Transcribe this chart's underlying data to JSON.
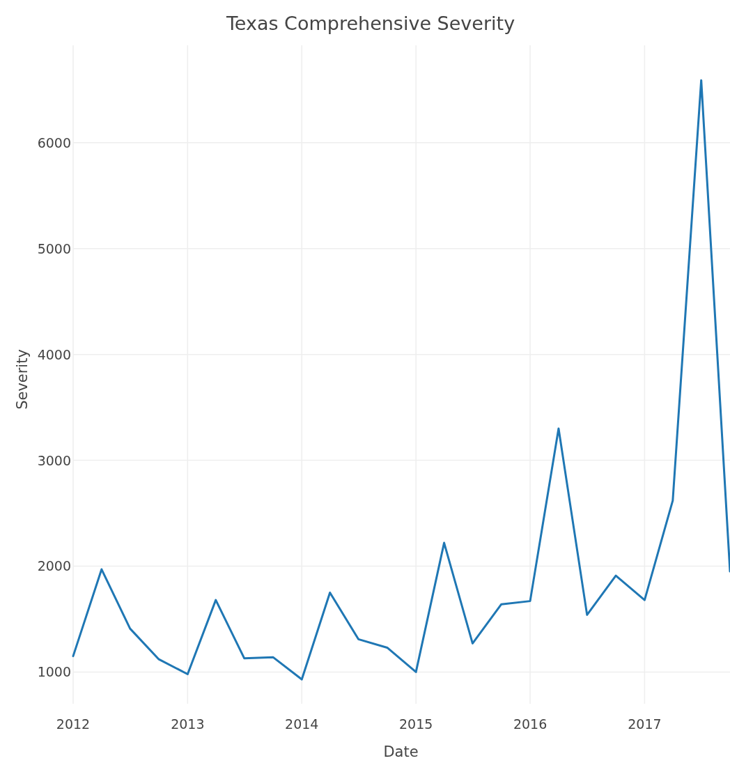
{
  "chart_data": {
    "type": "line",
    "title": "Texas Comprehensive Severity",
    "xlabel": "Date",
    "ylabel": "Severity",
    "x": [
      "2012-01",
      "2012-04",
      "2012-07",
      "2012-10",
      "2013-01",
      "2013-04",
      "2013-07",
      "2013-10",
      "2014-01",
      "2014-04",
      "2014-07",
      "2014-10",
      "2015-01",
      "2015-04",
      "2015-07",
      "2015-10",
      "2016-01",
      "2016-04",
      "2016-07",
      "2016-10",
      "2017-01",
      "2017-04",
      "2017-07",
      "2017-10"
    ],
    "series": [
      {
        "color": "#1f77b4",
        "values": [
          1150,
          1970,
          1410,
          1120,
          980,
          1680,
          1130,
          1140,
          930,
          1750,
          1310,
          1230,
          1000,
          2220,
          1270,
          1640,
          1670,
          3300,
          1540,
          1910,
          1680,
          2620,
          6590,
          1950
        ]
      }
    ],
    "xlim": [
      "2012-01",
      "2017-10"
    ],
    "xticks": [
      {
        "value": "2012-01",
        "label": "2012"
      },
      {
        "value": "2013-01",
        "label": "2013"
      },
      {
        "value": "2014-01",
        "label": "2014"
      },
      {
        "value": "2015-01",
        "label": "2015"
      },
      {
        "value": "2016-01",
        "label": "2016"
      },
      {
        "value": "2017-01",
        "label": "2017"
      }
    ],
    "ylim": [
      700,
      6920
    ],
    "yticks": [
      1000,
      2000,
      3000,
      4000,
      5000,
      6000
    ],
    "grid": true,
    "marker": "none",
    "line_style": "solid"
  }
}
